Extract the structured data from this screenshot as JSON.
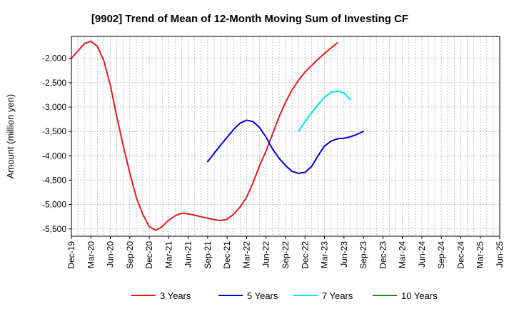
{
  "chart_data": {
    "type": "line",
    "title": "[9902]  Trend of Mean of 12-Month Moving Sum of Investing CF",
    "xlabel": "",
    "ylabel": "Amount (million yen)",
    "ylim": [
      -5650,
      -1550
    ],
    "yticks": [
      -2000,
      -2500,
      -3000,
      -3500,
      -4000,
      -4500,
      -5000,
      -5500
    ],
    "ytick_labels": [
      "-2,000",
      "-2,500",
      "-3,000",
      "-3,500",
      "-4,000",
      "-4,500",
      "-5,000",
      "-5,500"
    ],
    "x_categories": [
      "Dec-19",
      "Mar-20",
      "Jun-20",
      "Sep-20",
      "Dec-20",
      "Mar-21",
      "Jun-21",
      "Sep-21",
      "Dec-21",
      "Mar-22",
      "Jun-22",
      "Sep-22",
      "Dec-22",
      "Mar-23",
      "Jun-23",
      "Sep-23",
      "Dec-23",
      "Mar-24",
      "Jun-24",
      "Sep-24",
      "Dec-24",
      "Mar-25",
      "Jun-25"
    ],
    "grid": true,
    "legend_position": "bottom",
    "series": [
      {
        "name": "3 Years",
        "color": "#e31a1c",
        "start_index": 0,
        "values": [
          -2000,
          -1850,
          -1700,
          -1650,
          -1750,
          -2050,
          -2550,
          -3200,
          -3800,
          -4350,
          -4850,
          -5200,
          -5450,
          -5530,
          -5450,
          -5320,
          -5230,
          -5180,
          -5190,
          -5220,
          -5250,
          -5280,
          -5310,
          -5330,
          -5300,
          -5200,
          -5050,
          -4850,
          -4550,
          -4200,
          -3900,
          -3550,
          -3200,
          -2900,
          -2650,
          -2450,
          -2280,
          -2150,
          -2020,
          -1900,
          -1790,
          -1680
        ]
      },
      {
        "name": "5 Years",
        "color": "#0000cd",
        "start_index": 21,
        "values": [
          -4120,
          -3950,
          -3780,
          -3620,
          -3460,
          -3330,
          -3270,
          -3300,
          -3420,
          -3620,
          -3860,
          -4050,
          -4200,
          -4320,
          -4360,
          -4340,
          -4220,
          -4000,
          -3800,
          -3700,
          -3650,
          -3640,
          -3610,
          -3560,
          -3500
        ]
      },
      {
        "name": "7 Years",
        "color": "#00e5ee",
        "start_index": 35,
        "values": [
          -3500,
          -3300,
          -3120,
          -2950,
          -2800,
          -2700,
          -2670,
          -2710,
          -2850
        ]
      },
      {
        "name": "10 Years",
        "color": "#1a8a1a",
        "start_index": 0,
        "values": []
      }
    ]
  }
}
